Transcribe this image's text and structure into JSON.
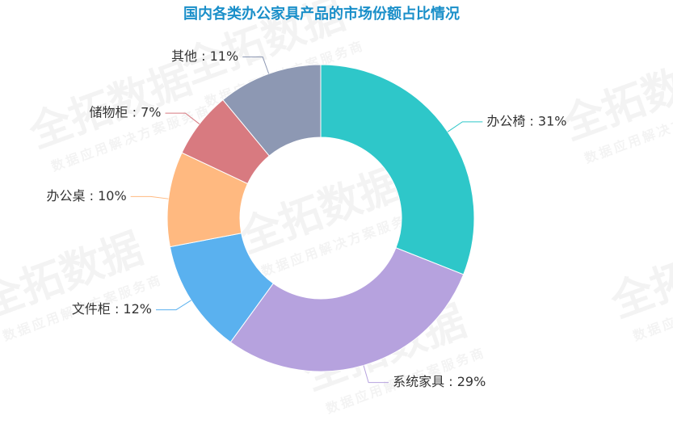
{
  "chart_data": {
    "type": "pie",
    "title": "国内各类办公家具产品的市场份额占比情况",
    "values": [
      31,
      29,
      12,
      10,
      7,
      11
    ],
    "value_labels": [
      "办公椅 : 31%",
      "系统家具 : 29%",
      "文件柜 : 12%",
      "办公桌 : 10%",
      "储物柜 : 7%",
      "其他 : 11%"
    ],
    "colors": [
      "#2ec7c9",
      "#b6a2de",
      "#5ab1ef",
      "#ffb980",
      "#d87a80",
      "#8d98b3"
    ],
    "donut": true
  },
  "watermark": {
    "title": "全拓数据",
    "subtitle": "数据应用解决方案服务商"
  }
}
